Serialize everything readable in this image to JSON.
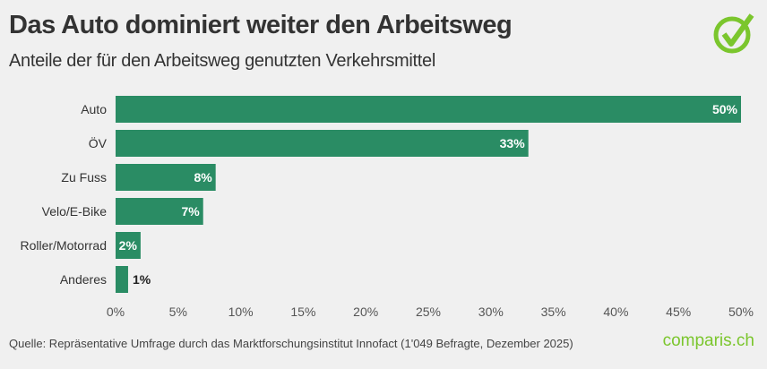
{
  "header": {
    "title": "Das Auto dominiert weiter den Arbeitsweg",
    "subtitle": "Anteile der für den Arbeitsweg genutzten Verkehrsmittel"
  },
  "footer": {
    "source": "Quelle: Repräsentative Umfrage durch das Marktforschungsinstitut Innofact (1'049 Befragte, Dezember 2025)",
    "brand": "comparis.ch"
  },
  "colors": {
    "bar": "#2a8c64",
    "background": "#f0f0f0",
    "brand": "#7bc62d"
  },
  "chart_data": {
    "type": "bar",
    "orientation": "horizontal",
    "categories": [
      "Auto",
      "ÖV",
      "Zu Fuss",
      "Velo/E-Bike",
      "Roller/Motorrad",
      "Anderes"
    ],
    "values": [
      50,
      33,
      8,
      7,
      2,
      1
    ],
    "data_labels": [
      "50%",
      "33%",
      "8%",
      "7%",
      "2%",
      "1%"
    ],
    "xlim": [
      0,
      50
    ],
    "xticks": [
      "0%",
      "5%",
      "10%",
      "15%",
      "20%",
      "25%",
      "30%",
      "35%",
      "40%",
      "45%",
      "50%"
    ],
    "grid": false
  }
}
